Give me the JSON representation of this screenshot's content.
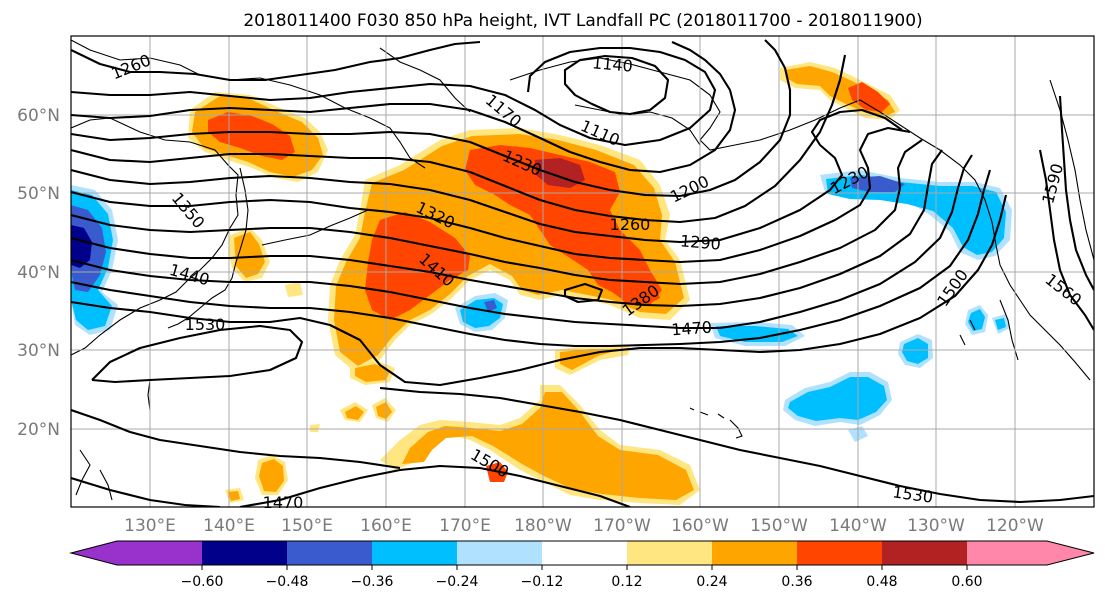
{
  "title": "2018011400 F030 850 hPa height, IVT Landfall PC (2018011700 - 2018011900)",
  "lat_labels": [
    "60°N",
    "50°N",
    "40°N",
    "30°N",
    "20°N"
  ],
  "lon_labels": [
    "130°E",
    "140°E",
    "150°E",
    "160°E",
    "170°E",
    "180°W",
    "170°W",
    "160°W",
    "150°W",
    "140°W",
    "130°W",
    "120°W"
  ],
  "contour_labels": [
    "1260",
    "1140",
    "1170",
    "1110",
    "1230",
    "1200",
    "1230",
    "1590",
    "1350",
    "1320",
    "1260",
    "1290",
    "1440",
    "1410",
    "1380",
    "1500",
    "1530",
    "1470",
    "1560",
    "1500",
    "1530",
    "1470"
  ],
  "colorbar": {
    "ticks": [
      "−0.60",
      "−0.48",
      "−0.36",
      "−0.24",
      "−0.12",
      "0.12",
      "0.24",
      "0.36",
      "0.48",
      "0.60"
    ],
    "colors": [
      "#9932cc",
      "#00008b",
      "#3a5bcd",
      "#00bfff",
      "#b0e2ff",
      "#ffffff",
      "#ffe680",
      "#ffa500",
      "#ff4500",
      "#b22222",
      "#ff88aa"
    ]
  },
  "fill_colors": {
    "lightorange": "#ffe680",
    "orange": "#ffa500",
    "redorange": "#ff4500",
    "darkred": "#b22222",
    "lightblue": "#b0e2ff",
    "deepskyblue": "#00bfff",
    "royalblue": "#3a5bcd",
    "navy": "#00008b"
  }
}
